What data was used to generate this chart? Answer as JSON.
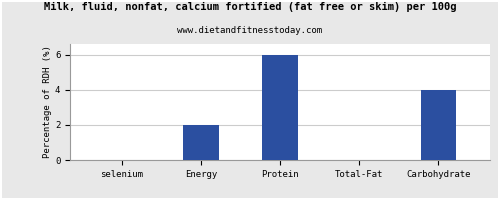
{
  "title": "Milk, fluid, nonfat, calcium fortified (fat free or skim) per 100g",
  "subtitle": "www.dietandfitnesstoday.com",
  "categories": [
    "selenium",
    "Energy",
    "Protein",
    "Total-Fat",
    "Carbohydrate"
  ],
  "values": [
    0,
    2.0,
    6.0,
    0,
    4.0
  ],
  "bar_color": "#2b4fa0",
  "ylabel": "Percentage of RDH (%)",
  "ylim": [
    0,
    6.6
  ],
  "yticks": [
    0,
    2,
    4,
    6
  ],
  "background_color": "#e8e8e8",
  "plot_bg_color": "#ffffff",
  "title_fontsize": 7.5,
  "subtitle_fontsize": 6.5,
  "ylabel_fontsize": 6.5,
  "tick_fontsize": 6.5,
  "grid_color": "#cccccc",
  "border_color": "#999999"
}
